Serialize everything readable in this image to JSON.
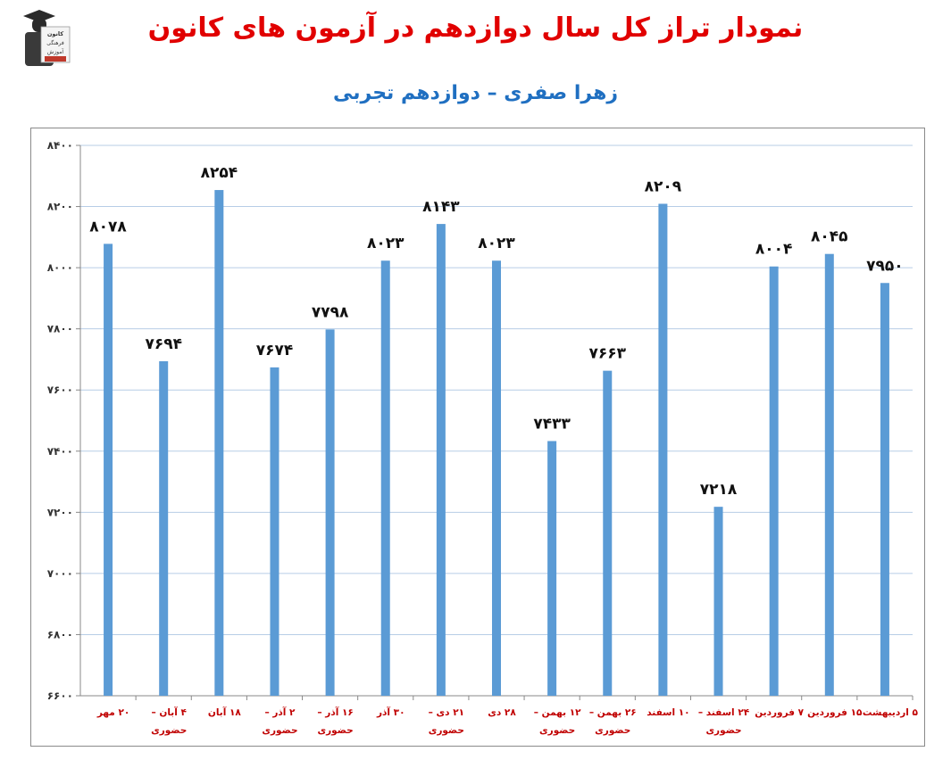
{
  "header": {
    "title": "نمودار تراز کل سال دوازدهم در آزمون های کانون",
    "subtitle": "زهرا صفری – دوازدهم تجربی"
  },
  "logo": {
    "icon": "graduate-logo-icon",
    "lines": [
      "کانون",
      "فرهنگی",
      "آموزش"
    ]
  },
  "colors": {
    "title": "#e10000",
    "subtitle": "#1f6fc1",
    "bar": "#5b9bd5",
    "grid": "#b7cde6",
    "xlabel": "#c00000"
  },
  "chart_data": {
    "type": "bar",
    "title": "نمودار تراز کل سال دوازدهم در آزمون های کانون",
    "subtitle": "زهرا صفری – دوازدهم تجربی",
    "xlabel": "",
    "ylabel": "",
    "ylim": [
      6600,
      8400
    ],
    "yticks": [
      6600,
      6800,
      7000,
      7200,
      7400,
      7600,
      7800,
      8000,
      8200,
      8400
    ],
    "ytick_labels": [
      "۶۶۰۰",
      "۶۸۰۰",
      "۷۰۰۰",
      "۷۲۰۰",
      "۷۴۰۰",
      "۷۶۰۰",
      "۷۸۰۰",
      "۸۰۰۰",
      "۸۲۰۰",
      "۸۴۰۰"
    ],
    "grid": true,
    "legend": "none",
    "categories": [
      [
        "۲۰ مهر"
      ],
      [
        "۴ آبان –",
        "حضوری"
      ],
      [
        "۱۸ آبان"
      ],
      [
        "۲ آذر –",
        "حضوری"
      ],
      [
        "۱۶ آذر –",
        "حضوری"
      ],
      [
        "۳۰ آذر"
      ],
      [
        "۲۱ دی –",
        "حضوری"
      ],
      [
        "۲۸ دی"
      ],
      [
        "۱۲ بهمن –",
        "حضوری"
      ],
      [
        "۲۶ بهمن –",
        "حضوری"
      ],
      [
        "۱۰ اسفند"
      ],
      [
        "۲۴ اسفند –",
        "حضوری"
      ],
      [
        "۷ فروردین"
      ],
      [
        "۱۵ فروردین"
      ],
      [
        "۵ اردیبهشت"
      ]
    ],
    "values": [
      8078,
      7694,
      8254,
      7674,
      7798,
      8023,
      8143,
      8023,
      7433,
      7663,
      8209,
      7218,
      8004,
      8045,
      7950
    ],
    "value_labels": [
      "۸۰۷۸",
      "۷۶۹۴",
      "۸۲۵۴",
      "۷۶۷۴",
      "۷۷۹۸",
      "۸۰۲۳",
      "۸۱۴۳",
      "۸۰۲۳",
      "۷۴۳۳",
      "۷۶۶۳",
      "۸۲۰۹",
      "۷۲۱۸",
      "۸۰۰۴",
      "۸۰۴۵",
      "۷۹۵۰"
    ]
  }
}
